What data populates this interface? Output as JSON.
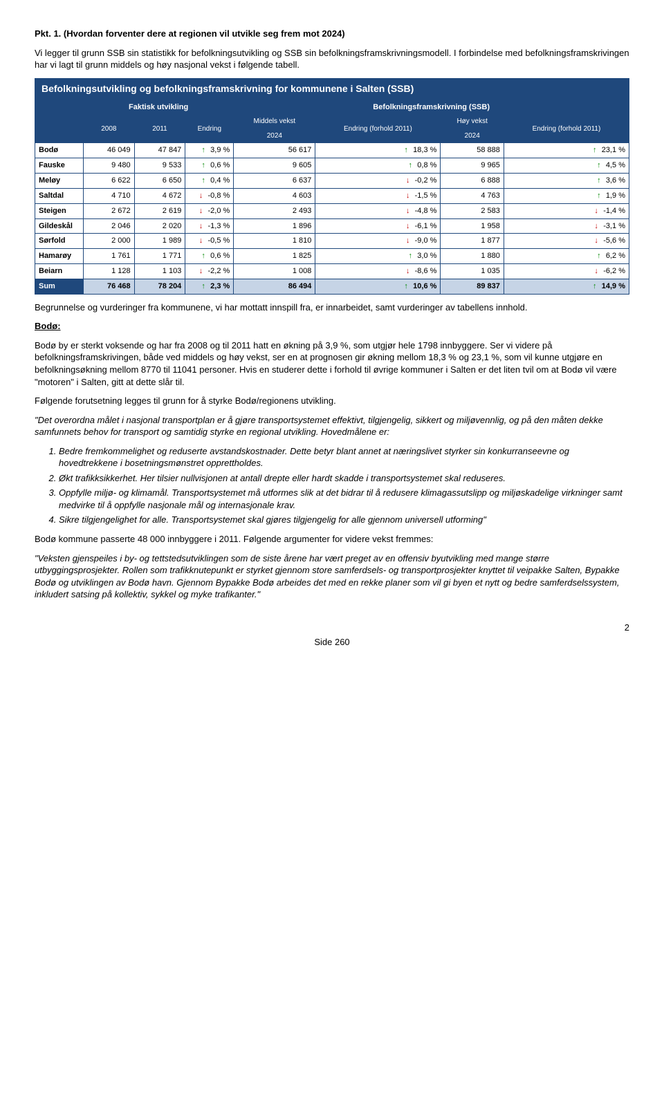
{
  "heading": {
    "title": "Pkt. 1. (Hvordan forventer dere at regionen vil utvikle seg frem mot 2024)"
  },
  "intro": {
    "p1": "Vi legger til grunn SSB sin statistikk for befolkningsutvikling og SSB sin befolkningsframskrivningsmodell. I forbindelse med befolkningsframskrivingen har vi lagt til grunn middels og høy nasjonal vekst i følgende tabell."
  },
  "table": {
    "title": "Befolkningsutvikling og befolkningsframskrivning for kommunene i Salten (SSB)",
    "headers": {
      "faktisk": "Faktisk utvikling",
      "framskrivning": "Befolkningsframskrivning (SSB)",
      "middels": "Middels vekst",
      "hoy": "Høy vekst",
      "y2008": "2008",
      "y2011": "2011",
      "endring": "Endring",
      "y2024": "2024",
      "endring_forhold": "Endring (forhold 2011)"
    },
    "rows": [
      {
        "name": "Bodø",
        "v2008": "46 049",
        "v2011": "47 847",
        "endr": "3,9 %",
        "edir": "up",
        "m2024": "56 617",
        "m_endr": "18,3 %",
        "m_dir": "up",
        "h2024": "58 888",
        "h_endr": "23,1 %",
        "h_dir": "up"
      },
      {
        "name": "Fauske",
        "v2008": "9 480",
        "v2011": "9 533",
        "endr": "0,6 %",
        "edir": "up",
        "m2024": "9 605",
        "m_endr": "0,8 %",
        "m_dir": "up",
        "h2024": "9 965",
        "h_endr": "4,5 %",
        "h_dir": "up"
      },
      {
        "name": "Meløy",
        "v2008": "6 622",
        "v2011": "6 650",
        "endr": "0,4 %",
        "edir": "up",
        "m2024": "6 637",
        "m_endr": "-0,2 %",
        "m_dir": "down",
        "h2024": "6 888",
        "h_endr": "3,6 %",
        "h_dir": "up"
      },
      {
        "name": "Saltdal",
        "v2008": "4 710",
        "v2011": "4 672",
        "endr": "-0,8 %",
        "edir": "down",
        "m2024": "4 603",
        "m_endr": "-1,5 %",
        "m_dir": "down",
        "h2024": "4 763",
        "h_endr": "1,9 %",
        "h_dir": "up"
      },
      {
        "name": "Steigen",
        "v2008": "2 672",
        "v2011": "2 619",
        "endr": "-2,0 %",
        "edir": "down",
        "m2024": "2 493",
        "m_endr": "-4,8 %",
        "m_dir": "down",
        "h2024": "2 583",
        "h_endr": "-1,4 %",
        "h_dir": "down"
      },
      {
        "name": "Gildeskål",
        "v2008": "2 046",
        "v2011": "2 020",
        "endr": "-1,3 %",
        "edir": "down",
        "m2024": "1 896",
        "m_endr": "-6,1 %",
        "m_dir": "down",
        "h2024": "1 958",
        "h_endr": "-3,1 %",
        "h_dir": "down"
      },
      {
        "name": "Sørfold",
        "v2008": "2 000",
        "v2011": "1 989",
        "endr": "-0,5 %",
        "edir": "down",
        "m2024": "1 810",
        "m_endr": "-9,0 %",
        "m_dir": "down",
        "h2024": "1 877",
        "h_endr": "-5,6 %",
        "h_dir": "down"
      },
      {
        "name": "Hamarøy",
        "v2008": "1 761",
        "v2011": "1 771",
        "endr": "0,6 %",
        "edir": "up",
        "m2024": "1 825",
        "m_endr": "3,0 %",
        "m_dir": "up",
        "h2024": "1 880",
        "h_endr": "6,2 %",
        "h_dir": "up"
      },
      {
        "name": "Beiarn",
        "v2008": "1 128",
        "v2011": "1 103",
        "endr": "-2,2 %",
        "edir": "down",
        "m2024": "1 008",
        "m_endr": "-8,6 %",
        "m_dir": "down",
        "h2024": "1 035",
        "h_endr": "-6,2 %",
        "h_dir": "down"
      }
    ],
    "sum": {
      "name": "Sum",
      "v2008": "76 468",
      "v2011": "78 204",
      "endr": "2,3 %",
      "edir": "up",
      "m2024": "86 494",
      "m_endr": "10,6 %",
      "m_dir": "up",
      "h2024": "89 837",
      "h_endr": "14,9 %",
      "h_dir": "up"
    }
  },
  "after_table": {
    "p1": "Begrunnelse og vurderinger fra kommunene, vi har mottatt innspill fra, er innarbeidet, samt vurderinger av tabellens innhold."
  },
  "bodo": {
    "heading": "Bodø:",
    "p1": "Bodø by er sterkt voksende og har fra 2008 og til 2011 hatt en økning på 3,9 %, som utgjør hele 1798 innbyggere. Ser vi videre på befolkningsframskrivingen, både ved middels og høy vekst, ser en at prognosen gir økning mellom 18,3 % og 23,1 %, som vil kunne utgjøre en befolkningsøkning mellom 8770 til 11041 personer. Hvis en studerer dette i forhold til øvrige kommuner i Salten er det liten tvil om at Bodø vil være \"motoren\" i Salten, gitt at dette slår til.",
    "p2": "Følgende forutsetning legges til grunn for å styrke Bodø/regionens utvikling.",
    "quote1": "\"Det overordna målet i nasjonal transportplan er å gjøre transportsystemet effektivt, tilgjengelig, sikkert og miljøvennlig, og på den måten dekke samfunnets behov for transport og samtidig styrke en regional utvikling. Hovedmålene er:",
    "list": [
      "Bedre fremkommelighet og reduserte avstandskostnader. Dette betyr blant annet at næringslivet styrker sin konkurranseevne og hovedtrekkene i bosetningsmønstret opprettholdes.",
      "Økt trafikksikkerhet. Her tilsier nullvisjonen at antall drepte eller hardt skadde i transportsystemet skal reduseres.",
      "Oppfylle miljø- og klimamål. Transportsystemet må utformes slik at det bidrar til å redusere klimagassutslipp og miljøskadelige virkninger samt medvirke til å oppfylle nasjonale mål og internasjonale krav.",
      "Sikre tilgjengelighet for alle. Transportsystemet skal gjøres tilgjengelig for alle gjennom universell utforming\""
    ],
    "p3": "Bodø kommune passerte 48 000 innbyggere i 2011. Følgende argumenter for videre vekst fremmes:",
    "quote2": " \"Veksten gjenspeiles i by- og tettstedsutviklingen som de siste årene har vært preget av en offensiv byutvikling med mange større utbyggingsprosjekter. Rollen som trafikknutepunkt er styrket gjennom store samferdsels- og transportprosjekter knyttet til veipakke Salten, Bypakke Bodø og utviklingen av Bodø havn. Gjennom Bypakke Bodø arbeides det med en rekke planer som vil gi byen et nytt og bedre samferdselssystem, inkludert satsing på kollektiv, sykkel og myke trafikanter.\""
  },
  "footer": {
    "page_num": "2",
    "side": "Side 260"
  },
  "colors": {
    "header_bg": "#1f487c",
    "header_fg": "#ffffff",
    "sum_bg": "#c6d4e6",
    "arrow_up": "#0a8a0a",
    "arrow_down": "#c00000"
  }
}
